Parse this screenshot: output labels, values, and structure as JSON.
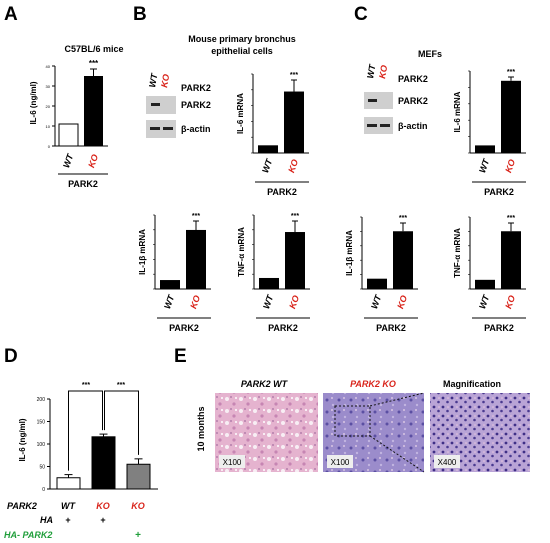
{
  "panels": {
    "A": {
      "letter": "A",
      "title": "C57BL/6 mice",
      "ylabel": "IL-6 (ng/ml)",
      "ticks": [
        "0",
        "10",
        "20",
        "30",
        "40"
      ],
      "cats": [
        "WT",
        "KO"
      ],
      "group": "PARK2",
      "sig": "***"
    },
    "B": {
      "letter": "B",
      "title_line1": "Mouse primary bronchus",
      "title_line2": "epithelial cells",
      "blot": {
        "col1": "WT",
        "col2": "KO",
        "label_top": "PARK2",
        "row1": "PARK2",
        "row2": "β-actin"
      },
      "c1": {
        "ylabel": "IL-6 mRNA",
        "cats": [
          "WT",
          "KO"
        ],
        "group": "PARK2",
        "sig": "***"
      },
      "c2": {
        "ylabel": "IL-1β mRNA",
        "cats": [
          "WT",
          "KO"
        ],
        "group": "PARK2",
        "sig": "***"
      },
      "c3": {
        "ylabel": "TNF-α mRNA",
        "cats": [
          "WT",
          "KO"
        ],
        "group": "PARK2",
        "sig": "***"
      }
    },
    "C": {
      "letter": "C",
      "title": "MEFs",
      "blot": {
        "col1": "WT",
        "col2": "KO",
        "label_top": "PARK2",
        "row1": "PARK2",
        "row2": "β-actin"
      },
      "c1": {
        "ylabel": "IL-6 mRNA",
        "cats": [
          "WT",
          "KO"
        ],
        "group": "PARK2",
        "sig": "***"
      },
      "c2": {
        "ylabel": "IL-1β mRNA",
        "cats": [
          "WT",
          "KO"
        ],
        "group": "PARK2",
        "sig": "***"
      },
      "c3": {
        "ylabel": "TNF-α mRNA",
        "cats": [
          "WT",
          "KO"
        ],
        "group": "PARK2",
        "sig": "***"
      }
    },
    "D": {
      "letter": "D",
      "ylabel": "IL-6 (ng/ml)",
      "ticks": [
        "0",
        "50",
        "100",
        "150",
        "200"
      ],
      "sig1": "***",
      "sig2": "***",
      "row_park2": {
        "label": "PARK2",
        "v1": "WT",
        "v2": "KO",
        "v3": "KO"
      },
      "row_ha": {
        "label": "HA",
        "v1": "+",
        "v2": "+"
      },
      "row_haparks": {
        "label": "HA- PARK2",
        "v3": "+"
      }
    },
    "E": {
      "letter": "E",
      "side": "10 months",
      "h1": "PARK2 WT",
      "h2a": "PARK2",
      "h2b": "KO",
      "h3": "Magnification",
      "m1": "X100",
      "m2": "X100",
      "m3": "X400"
    }
  },
  "colors": {
    "ko_red": "#d9241b",
    "ha_green": "#1f9e3a",
    "bar_black": "#000000",
    "bar_gray": "#808080",
    "tissue_pink": "#d99cc6",
    "tissue_purple": "#8a7cc4"
  },
  "chart_data": [
    {
      "type": "bar",
      "panel": "A",
      "categories": [
        "WT",
        "KO"
      ],
      "values": [
        11,
        35
      ],
      "errors": [
        0.8,
        3.5
      ],
      "ylabel": "IL-6 (ng/ml)",
      "ylim": [
        0,
        40
      ],
      "xlabel": "PARK2",
      "significance": "***"
    },
    {
      "type": "bar",
      "panel": "B",
      "categories": [
        "WT",
        "KO"
      ],
      "values": [
        1,
        8
      ],
      "errors": [
        0,
        1.5
      ],
      "ylabel": "IL-6 mRNA",
      "xlabel": "PARK2",
      "significance": "***"
    },
    {
      "type": "bar",
      "panel": "B",
      "categories": [
        "WT",
        "KO"
      ],
      "values": [
        1,
        6.6
      ],
      "errors": [
        0,
        1.0
      ],
      "ylabel": "IL-1β mRNA",
      "xlabel": "PARK2",
      "significance": "***"
    },
    {
      "type": "bar",
      "panel": "B",
      "categories": [
        "WT",
        "KO"
      ],
      "values": [
        1.2,
        6.2
      ],
      "errors": [
        0,
        1.2
      ],
      "ylabel": "TNF-α mRNA",
      "xlabel": "PARK2",
      "significance": "***"
    },
    {
      "type": "bar",
      "panel": "C",
      "categories": [
        "WT",
        "KO"
      ],
      "values": [
        1,
        9.5
      ],
      "errors": [
        0,
        0.5
      ],
      "ylabel": "IL-6 mRNA",
      "xlabel": "PARK2",
      "significance": "***"
    },
    {
      "type": "bar",
      "panel": "C",
      "categories": [
        "WT",
        "KO"
      ],
      "values": [
        1,
        5.6
      ],
      "errors": [
        0,
        0.8
      ],
      "ylabel": "IL-1β mRNA",
      "xlabel": "PARK2",
      "significance": "***"
    },
    {
      "type": "bar",
      "panel": "C",
      "categories": [
        "WT",
        "KO"
      ],
      "values": [
        1,
        6.3
      ],
      "errors": [
        0,
        0.9
      ],
      "ylabel": "TNF-α mRNA",
      "xlabel": "PARK2",
      "significance": "***"
    },
    {
      "type": "bar",
      "panel": "D",
      "categories": [
        "WT + HA",
        "KO + HA",
        "KO + HA-PARK2"
      ],
      "values": [
        25,
        116,
        55
      ],
      "errors": [
        7,
        6,
        12
      ],
      "ylabel": "IL-6 (ng/ml)",
      "ylim": [
        0,
        200
      ]
    }
  ]
}
